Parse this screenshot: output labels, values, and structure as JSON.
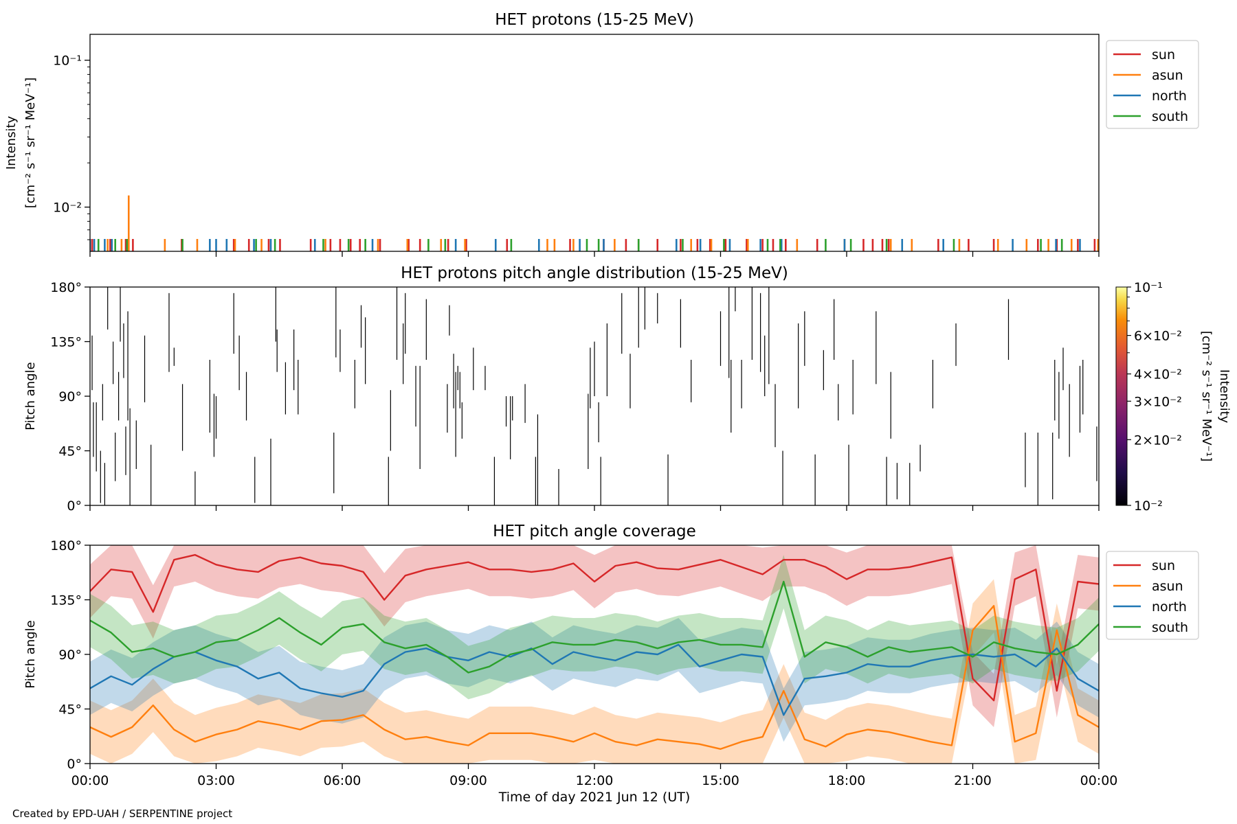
{
  "figure": {
    "credit": "Created by EPD-UAH / SERPENTINE project",
    "xlabel": "Time of day 2021 Jun 12 (UT)",
    "xticks": [
      "00:00",
      "03:00",
      "06:00",
      "09:00",
      "12:00",
      "15:00",
      "18:00",
      "21:00",
      "00:00"
    ],
    "series_names": [
      "sun",
      "asun",
      "north",
      "south"
    ],
    "colors": {
      "sun": "#d62728",
      "asun": "#ff7f0e",
      "north": "#1f77b4",
      "south": "#2ca02c"
    }
  },
  "chart_data": [
    {
      "type": "scatter",
      "title": "HET protons (15-25 MeV)",
      "ylabel": "Intensity",
      "yunit": "[cm⁻² s⁻¹ sr⁻¹ MeV⁻¹]",
      "yscale": "log",
      "ylim": [
        0.005,
        0.15
      ],
      "yticks": [
        "10⁻²",
        "10⁻¹"
      ],
      "xlim_hours": [
        0,
        24
      ],
      "legend": "top-right outside",
      "note_spike": {
        "series": "asun",
        "x_hour": 0.92,
        "y": 0.012
      },
      "series": [
        {
          "name": "sun",
          "x_hours": [
            0.05,
            0.48,
            0.85,
            1.02,
            2.18,
            3.42,
            3.78,
            4.25,
            4.52,
            5.25,
            5.72,
            5.95,
            6.2,
            6.42,
            6.9,
            7.58,
            7.85,
            8.52,
            8.95,
            9.92,
            11.42,
            12.22,
            12.75,
            13.05,
            13.5,
            14.05,
            14.45,
            14.75,
            15.12,
            15.62,
            16.0,
            16.25,
            16.55,
            17.3,
            18.4,
            18.62,
            18.85,
            19.0,
            20.18,
            20.9,
            21.5,
            22.55,
            23.0,
            23.5,
            23.9
          ]
        },
        {
          "name": "asun",
          "x_hours": [
            0.42,
            0.75,
            0.92,
            1.78,
            2.55,
            3.45,
            4.08,
            5.6,
            6.85,
            7.55,
            8.35,
            8.92,
            10.88,
            11.05,
            11.5,
            12.48,
            14.3,
            14.78,
            15.65,
            16.82,
            17.95,
            19.05,
            19.55,
            20.68,
            21.6,
            22.28,
            22.8,
            23.35,
            23.98
          ]
        },
        {
          "name": "north",
          "x_hours": [
            0.0,
            0.1,
            0.35,
            0.52,
            2.85,
            3.0,
            3.25,
            3.9,
            4.3,
            5.35,
            6.72,
            8.7,
            9.65,
            10.68,
            11.65,
            12.22,
            13.95,
            14.52,
            15.22,
            15.95,
            16.45,
            17.95,
            19.32,
            20.3,
            21.95,
            22.98,
            23.55
          ]
        },
        {
          "name": "south",
          "x_hours": [
            0.2,
            0.6,
            0.88,
            2.2,
            3.95,
            4.4,
            5.55,
            6.15,
            6.55,
            8.05,
            8.45,
            10.02,
            11.82,
            12.1,
            13.05,
            14.1,
            15.08,
            16.12,
            16.42,
            17.5,
            18.1,
            18.95,
            20.55,
            22.62,
            23.12
          ]
        }
      ]
    },
    {
      "type": "heatmap",
      "title": "HET protons pitch angle distribution (15-25 MeV)",
      "ylabel": "Pitch angle",
      "ylim": [
        0,
        180
      ],
      "yticks": [
        "0°",
        "45°",
        "90°",
        "135°",
        "180°"
      ],
      "colorbar": {
        "label": "Intensity",
        "unit": "[cm⁻² s⁻¹ sr⁻¹ MeV⁻¹]",
        "scale": "log",
        "range": [
          0.01,
          0.1
        ],
        "ticks": [
          {
            "value": 0.01,
            "label": "10⁻²"
          },
          {
            "value": 0.02,
            "label": "2×10⁻²"
          },
          {
            "value": 0.03,
            "label": "3×10⁻²"
          },
          {
            "value": 0.04,
            "label": "4×10⁻²"
          },
          {
            "value": 0.06,
            "label": "6×10⁻²"
          },
          {
            "value": 0.1,
            "label": "10⁻¹"
          }
        ]
      },
      "segments": [
        [
          0.05,
          95,
          140
        ],
        [
          0.08,
          40,
          85
        ],
        [
          0.15,
          28,
          85
        ],
        [
          0.25,
          2,
          45
        ],
        [
          0.3,
          70,
          100
        ],
        [
          0.35,
          0,
          35
        ],
        [
          0.42,
          145,
          180
        ],
        [
          0.55,
          100,
          135
        ],
        [
          0.6,
          20,
          60
        ],
        [
          0.68,
          70,
          110
        ],
        [
          0.72,
          135,
          180
        ],
        [
          0.8,
          105,
          150
        ],
        [
          0.85,
          25,
          65
        ],
        [
          0.9,
          70,
          160
        ],
        [
          0.95,
          0,
          80
        ],
        [
          1.1,
          30,
          70
        ],
        [
          1.3,
          85,
          140
        ],
        [
          1.45,
          0,
          50
        ],
        [
          1.88,
          110,
          175
        ],
        [
          2.0,
          115,
          130
        ],
        [
          2.2,
          45,
          100
        ],
        [
          2.5,
          0,
          28
        ],
        [
          2.85,
          60,
          120
        ],
        [
          2.95,
          40,
          92
        ],
        [
          3.0,
          55,
          90
        ],
        [
          3.42,
          125,
          175
        ],
        [
          3.55,
          95,
          140
        ],
        [
          3.72,
          70,
          110
        ],
        [
          3.92,
          2,
          40
        ],
        [
          4.3,
          0,
          55
        ],
        [
          4.42,
          135,
          180
        ],
        [
          4.45,
          110,
          145
        ],
        [
          4.65,
          75,
          118
        ],
        [
          4.85,
          95,
          145
        ],
        [
          4.95,
          75,
          120
        ],
        [
          5.8,
          10,
          60
        ],
        [
          5.85,
          122,
          180
        ],
        [
          5.95,
          110,
          145
        ],
        [
          6.3,
          80,
          120
        ],
        [
          6.45,
          130,
          165
        ],
        [
          6.55,
          100,
          155
        ],
        [
          7.1,
          0,
          40
        ],
        [
          7.15,
          45,
          95
        ],
        [
          7.3,
          120,
          180
        ],
        [
          7.45,
          100,
          150
        ],
        [
          7.5,
          125,
          175
        ],
        [
          7.75,
          65,
          115
        ],
        [
          7.85,
          30,
          115
        ],
        [
          8.0,
          120,
          170
        ],
        [
          8.5,
          60,
          100
        ],
        [
          8.55,
          140,
          165
        ],
        [
          8.65,
          80,
          125
        ],
        [
          8.7,
          40,
          110
        ],
        [
          8.75,
          95,
          115
        ],
        [
          8.8,
          80,
          110
        ],
        [
          8.85,
          55,
          85
        ],
        [
          9.12,
          95,
          130
        ],
        [
          9.4,
          95,
          115
        ],
        [
          9.62,
          0,
          40
        ],
        [
          9.9,
          65,
          90
        ],
        [
          10.0,
          38,
          90
        ],
        [
          10.05,
          70,
          90
        ],
        [
          10.35,
          68,
          100
        ],
        [
          10.6,
          0,
          40
        ],
        [
          10.65,
          0,
          75
        ],
        [
          11.15,
          0,
          30
        ],
        [
          11.85,
          30,
          92
        ],
        [
          11.9,
          80,
          130
        ],
        [
          12.0,
          90,
          135
        ],
        [
          12.1,
          52,
          85
        ],
        [
          12.15,
          0,
          40
        ],
        [
          12.3,
          90,
          150
        ],
        [
          12.65,
          125,
          175
        ],
        [
          12.85,
          80,
          125
        ],
        [
          13.05,
          130,
          180
        ],
        [
          13.2,
          145,
          180
        ],
        [
          13.5,
          150,
          175
        ],
        [
          13.75,
          0,
          42
        ],
        [
          14.05,
          130,
          170
        ],
        [
          14.3,
          85,
          120
        ],
        [
          15.0,
          115,
          160
        ],
        [
          15.2,
          105,
          180
        ],
        [
          15.25,
          60,
          120
        ],
        [
          15.35,
          160,
          180
        ],
        [
          15.5,
          80,
          120
        ],
        [
          15.75,
          120,
          180
        ],
        [
          15.95,
          110,
          175
        ],
        [
          16.05,
          90,
          140
        ],
        [
          16.15,
          100,
          180
        ],
        [
          16.3,
          48,
          100
        ],
        [
          16.48,
          0,
          45
        ],
        [
          16.85,
          80,
          150
        ],
        [
          17.0,
          115,
          160
        ],
        [
          17.25,
          0,
          42
        ],
        [
          17.45,
          95,
          128
        ],
        [
          17.7,
          120,
          170
        ],
        [
          17.8,
          70,
          100
        ],
        [
          18.05,
          0,
          50
        ],
        [
          18.15,
          75,
          120
        ],
        [
          18.7,
          100,
          160
        ],
        [
          18.95,
          0,
          40
        ],
        [
          19.05,
          55,
          110
        ],
        [
          19.2,
          5,
          35
        ],
        [
          19.5,
          0,
          35
        ],
        [
          19.75,
          28,
          50
        ],
        [
          20.05,
          80,
          120
        ],
        [
          20.6,
          115,
          150
        ],
        [
          21.85,
          120,
          170
        ],
        [
          22.25,
          15,
          60
        ],
        [
          22.55,
          0,
          60
        ],
        [
          22.9,
          5,
          60
        ],
        [
          22.95,
          70,
          120
        ],
        [
          23.05,
          55,
          110
        ],
        [
          23.15,
          95,
          130
        ],
        [
          23.3,
          40,
          100
        ],
        [
          23.55,
          60,
          115
        ],
        [
          23.62,
          75,
          120
        ],
        [
          23.95,
          20,
          65
        ]
      ]
    },
    {
      "type": "area",
      "title": "HET pitch angle coverage",
      "ylabel": "Pitch angle",
      "ylim": [
        0,
        180
      ],
      "yticks": [
        "0°",
        "45°",
        "90°",
        "135°",
        "180°"
      ],
      "xlim_hours": [
        0,
        24
      ],
      "legend": "top-right outside",
      "band_half_width_deg": 22,
      "series": [
        {
          "name": "sun",
          "x_hours": [
            0,
            0.5,
            1,
            1.5,
            2,
            2.5,
            3,
            3.5,
            4,
            4.5,
            5,
            5.5,
            6,
            6.5,
            7,
            7.5,
            8,
            8.5,
            9,
            9.5,
            10,
            10.5,
            11,
            11.5,
            12,
            12.5,
            13,
            13.5,
            14,
            14.5,
            15,
            15.5,
            16,
            16.5,
            17,
            17.5,
            18,
            18.5,
            19,
            19.5,
            20,
            20.5,
            21,
            21.5,
            22,
            22.5,
            23,
            23.5,
            24
          ],
          "values": [
            142,
            160,
            158,
            125,
            168,
            172,
            164,
            160,
            158,
            167,
            170,
            165,
            163,
            158,
            135,
            155,
            160,
            163,
            166,
            160,
            160,
            158,
            160,
            165,
            150,
            163,
            166,
            161,
            160,
            164,
            168,
            162,
            156,
            168,
            168,
            162,
            152,
            160,
            160,
            162,
            166,
            170,
            70,
            52,
            152,
            160,
            60,
            150,
            148
          ]
        },
        {
          "name": "asun",
          "x_hours": [
            0,
            0.5,
            1,
            1.5,
            2,
            2.5,
            3,
            3.5,
            4,
            4.5,
            5,
            5.5,
            6,
            6.5,
            7,
            7.5,
            8,
            8.5,
            9,
            9.5,
            10,
            10.5,
            11,
            11.5,
            12,
            12.5,
            13,
            13.5,
            14,
            14.5,
            15,
            15.5,
            16,
            16.5,
            17,
            17.5,
            18,
            18.5,
            19,
            19.5,
            20,
            20.5,
            21,
            21.5,
            22,
            22.5,
            23,
            23.5,
            24
          ],
          "values": [
            30,
            22,
            30,
            48,
            28,
            18,
            24,
            28,
            35,
            32,
            28,
            35,
            36,
            40,
            28,
            20,
            22,
            18,
            15,
            25,
            25,
            25,
            22,
            18,
            25,
            18,
            15,
            20,
            18,
            16,
            12,
            18,
            22,
            60,
            20,
            14,
            24,
            28,
            26,
            22,
            18,
            15,
            110,
            130,
            18,
            25,
            110,
            40,
            30
          ]
        },
        {
          "name": "north",
          "x_hours": [
            0,
            0.5,
            1,
            1.5,
            2,
            2.5,
            3,
            3.5,
            4,
            4.5,
            5,
            5.5,
            6,
            6.5,
            7,
            7.5,
            8,
            8.5,
            9,
            9.5,
            10,
            10.5,
            11,
            11.5,
            12,
            12.5,
            13,
            13.5,
            14,
            14.5,
            15,
            15.5,
            16,
            16.5,
            17,
            17.5,
            18,
            18.5,
            19,
            19.5,
            20,
            20.5,
            21,
            21.5,
            22,
            22.5,
            23,
            23.5,
            24
          ],
          "values": [
            62,
            72,
            65,
            78,
            88,
            92,
            85,
            80,
            70,
            75,
            62,
            58,
            55,
            60,
            82,
            92,
            95,
            88,
            85,
            92,
            88,
            95,
            82,
            92,
            88,
            85,
            92,
            90,
            98,
            80,
            85,
            90,
            88,
            40,
            70,
            72,
            75,
            82,
            80,
            80,
            85,
            88,
            90,
            88,
            90,
            80,
            95,
            70,
            60
          ]
        },
        {
          "name": "south",
          "x_hours": [
            0,
            0.5,
            1,
            1.5,
            2,
            2.5,
            3,
            3.5,
            4,
            4.5,
            5,
            5.5,
            6,
            6.5,
            7,
            7.5,
            8,
            8.5,
            9,
            9.5,
            10,
            10.5,
            11,
            11.5,
            12,
            12.5,
            13,
            13.5,
            14,
            14.5,
            15,
            15.5,
            16,
            16.5,
            17,
            17.5,
            18,
            18.5,
            19,
            19.5,
            20,
            20.5,
            21,
            21.5,
            22,
            22.5,
            23,
            23.5,
            24
          ],
          "values": [
            118,
            108,
            92,
            95,
            88,
            92,
            100,
            102,
            110,
            120,
            108,
            98,
            112,
            115,
            100,
            95,
            98,
            88,
            75,
            80,
            90,
            94,
            100,
            98,
            98,
            102,
            100,
            95,
            100,
            102,
            98,
            98,
            96,
            150,
            88,
            100,
            96,
            88,
            96,
            92,
            94,
            96,
            88,
            100,
            95,
            92,
            90,
            98,
            115
          ]
        }
      ]
    }
  ]
}
